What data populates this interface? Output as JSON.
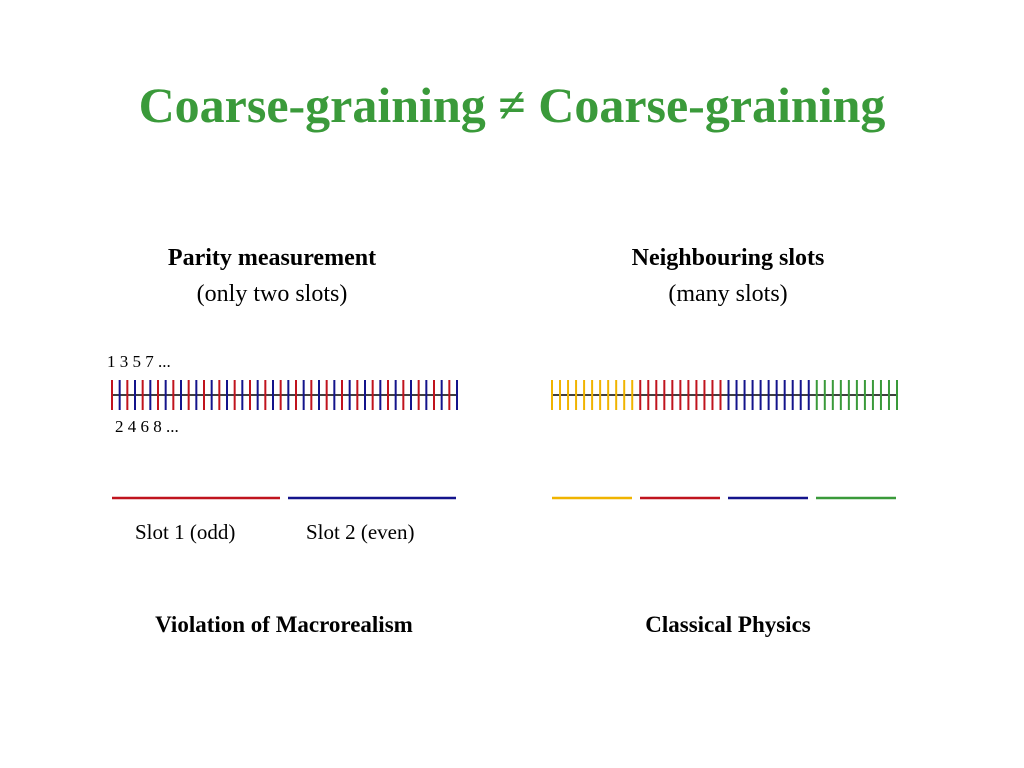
{
  "title": "Coarse-graining ≠ Coarse-graining",
  "left": {
    "heading": "Parity measurement",
    "subheading": "(only two slots)",
    "odd_label": "1 3 5 7 ...",
    "even_label": "2 4 6 8 ...",
    "slot1_label": "Slot 1 (odd)",
    "slot2_label": "Slot 2 (even)",
    "conclusion": "Violation of Macrorealism",
    "colors": {
      "odd": "#c0141e",
      "even": "#14148c",
      "axis": "#000000"
    }
  },
  "right": {
    "heading": "Neighbouring slots",
    "subheading": "(many slots)",
    "conclusion": "Classical Physics",
    "colors": [
      "#f0b400",
      "#c0141e",
      "#14148c",
      "#3a9a3a"
    ]
  }
}
